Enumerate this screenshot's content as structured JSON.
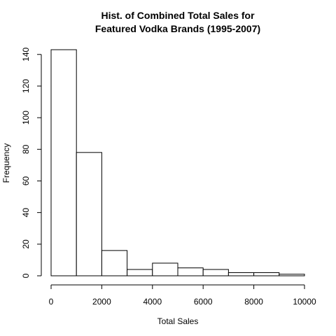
{
  "chart_data": {
    "type": "bar",
    "title_lines": [
      "Hist. of Combined Total Sales for",
      "Featured Vodka Brands (1995-2007)"
    ],
    "xlabel": "Total Sales",
    "ylabel": "Frequency",
    "bins": [
      {
        "from": 0,
        "to": 1000,
        "count": 143
      },
      {
        "from": 1000,
        "to": 2000,
        "count": 78
      },
      {
        "from": 2000,
        "to": 3000,
        "count": 16
      },
      {
        "from": 3000,
        "to": 4000,
        "count": 4
      },
      {
        "from": 4000,
        "to": 5000,
        "count": 8
      },
      {
        "from": 5000,
        "to": 6000,
        "count": 5
      },
      {
        "from": 6000,
        "to": 7000,
        "count": 4
      },
      {
        "from": 7000,
        "to": 8000,
        "count": 2
      },
      {
        "from": 8000,
        "to": 9000,
        "count": 2
      },
      {
        "from": 9000,
        "to": 10000,
        "count": 1
      }
    ],
    "xlim": [
      0,
      10000
    ],
    "ylim": [
      0,
      143
    ],
    "x_ticks": [
      0,
      2000,
      4000,
      6000,
      8000,
      10000
    ],
    "y_ticks": [
      0,
      20,
      40,
      60,
      80,
      100,
      120,
      140
    ],
    "grid": false,
    "colors": {
      "bar_fill": "#ffffff",
      "bar_stroke": "#000000"
    }
  }
}
